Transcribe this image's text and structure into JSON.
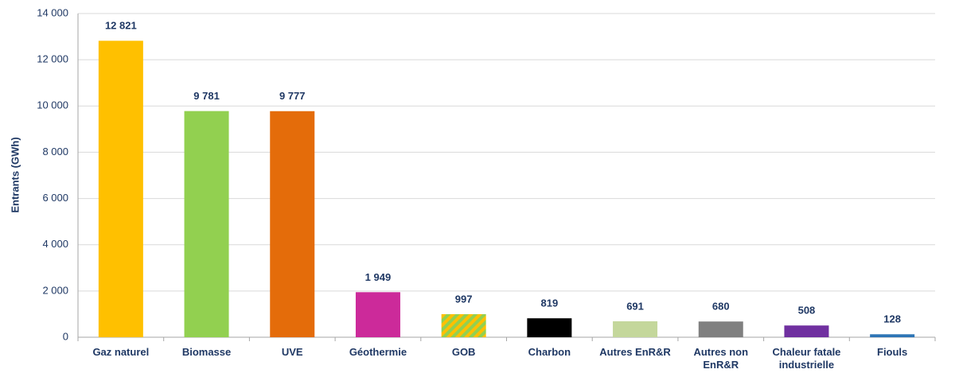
{
  "chart_data": {
    "type": "bar",
    "y_label": "Entrants (GWh)",
    "categories": [
      "Gaz naturel",
      "Biomasse",
      "UVE",
      "Géothermie",
      "GOB",
      "Charbon",
      "Autres EnR&R",
      "Autres non EnR&R",
      "Chaleur fatale industrielle",
      "Fiouls"
    ],
    "values": [
      12821,
      9781,
      9777,
      1949,
      997,
      819,
      691,
      680,
      508,
      128
    ],
    "value_labels": [
      "12 821",
      "9 781",
      "9 777",
      "1 949",
      "997",
      "819",
      "691",
      "680",
      "508",
      "128"
    ],
    "colors": [
      "#FFC000",
      "#92D050",
      "#E46C0A",
      "#CC2A9A",
      "#92D050",
      "#000000",
      "#C4D79B",
      "#808080",
      "#7030A0",
      "#2E75B6"
    ],
    "hatched": [
      false,
      false,
      false,
      false,
      true,
      false,
      false,
      false,
      false,
      false
    ],
    "hatch_color": "#FFC000",
    "ylim": [
      0,
      14000
    ],
    "yticks": [
      0,
      {
        "value": 2000,
        "label": "2 000"
      },
      {
        "value": 4000,
        "label": "4 000"
      },
      {
        "value": 6000,
        "label": "6 000"
      },
      {
        "value": 8000,
        "label": "8 000"
      },
      {
        "value": 10000,
        "label": "10 000"
      },
      {
        "value": 12000,
        "label": "12 000"
      },
      {
        "value": 14000,
        "label": "14 000"
      }
    ],
    "grid": true
  }
}
